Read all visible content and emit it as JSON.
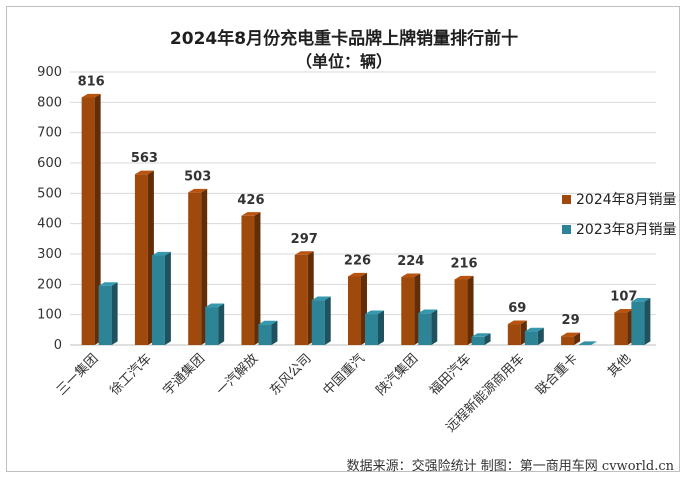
{
  "chart_data": {
    "type": "bar",
    "title": "2024年8月份充电重卡品牌上牌销量排行前十",
    "subtitle": "（单位：辆）",
    "categories": [
      "三一集团",
      "徐工汽车",
      "宇通集团",
      "一汽解放",
      "东风公司",
      "中国重汽",
      "陕汽集团",
      "福田汽车",
      "远程新能源商用车",
      "联合重卡",
      "其他"
    ],
    "series": [
      {
        "name": "2024年8月销量",
        "color": "#a0490d",
        "values": [
          816,
          563,
          503,
          426,
          297,
          226,
          224,
          216,
          69,
          29,
          107
        ],
        "labels": [
          "816",
          "563",
          "503",
          "426",
          "297",
          "226",
          "224",
          "216",
          "69",
          "29",
          "107"
        ]
      },
      {
        "name": "2023年8月销量",
        "color": "#2e8497",
        "values": [
          195,
          295,
          125,
          68,
          148,
          102,
          105,
          27,
          45,
          0,
          143
        ]
      }
    ],
    "ylim": [
      0,
      900
    ],
    "yticks": [
      0,
      100,
      200,
      300,
      400,
      500,
      600,
      700,
      800,
      900
    ],
    "grid": true,
    "legend": "right"
  },
  "source_note": "数据来源：交强险统计  制图：第一商用车网 cvworld.cn"
}
